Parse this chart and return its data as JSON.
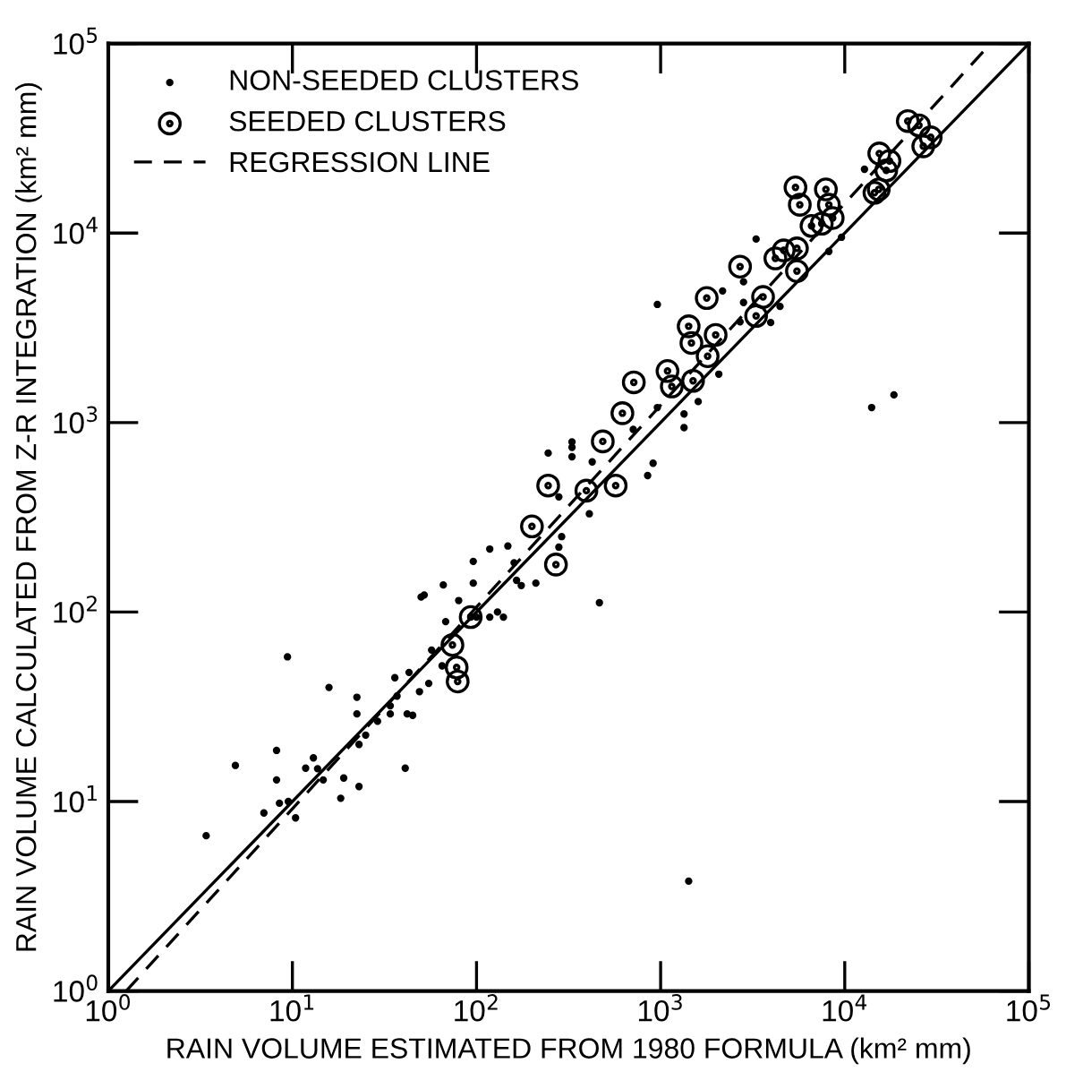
{
  "chart_data": {
    "type": "scatter",
    "xlabel": "RAIN VOLUME ESTIMATED FROM 1980 FORMULA (km² mm)",
    "ylabel": "RAIN VOLUME CALCULATED FROM Z-R INTEGRATION (km² mm)",
    "log": "xy",
    "xlim": [
      1,
      100000
    ],
    "ylim": [
      1,
      100000
    ],
    "xticks": [
      {
        "value": 1,
        "label": "10$^{0}$"
      },
      {
        "value": 10,
        "label": "10$^{1}$"
      },
      {
        "value": 100,
        "label": "10$^{2}$"
      },
      {
        "value": 1000,
        "label": "10$^{3}$"
      },
      {
        "value": 10000,
        "label": "10$^{4}$"
      },
      {
        "value": 100000,
        "label": "10$^{5}$"
      }
    ],
    "yticks": [
      {
        "value": 1,
        "label": "10$^{0}$"
      },
      {
        "value": 10,
        "label": "10$^{1}$"
      },
      {
        "value": 100,
        "label": "10$^{2}$"
      },
      {
        "value": 1000,
        "label": "10$^{3}$"
      },
      {
        "value": 10000,
        "label": "10$^{4}$"
      },
      {
        "value": 100000,
        "label": "10$^{5}$"
      }
    ],
    "grid": false,
    "legend": "top left",
    "series": [
      {
        "name": "NON-SEEDED CLUSTERS",
        "marker": "circle",
        "color": "#000000",
        "x": [
          3.4,
          4.9,
          9.4,
          7.0,
          8.2,
          8.2,
          8.5,
          9.5,
          10.4,
          11.8,
          13,
          13.7,
          14.7,
          15.8,
          19,
          18.3,
          23,
          22.4,
          22.4,
          23,
          25,
          29,
          34,
          34,
          36,
          37,
          42,
          41,
          45,
          43,
          49,
          50,
          52,
          55,
          57,
          66,
          68,
          65,
          80,
          96,
          96,
          100,
          118,
          118,
          130,
          140,
          148,
          160,
          165,
          245,
          330,
          330,
          330,
          280,
          425,
          410,
          710,
          910,
          850,
          960,
          1340,
          1340,
          1600,
          2070,
          960,
          2170,
          2820,
          2820,
          2700,
          3960,
          4450,
          3300,
          9600,
          12800,
          14000,
          18500,
          8200,
          465,
          1420,
          210,
          175,
          280,
          290
        ],
        "values": [
          6.6,
          15.5,
          58,
          8.7,
          18.6,
          13,
          9.8,
          10,
          8.2,
          15,
          17,
          14.9,
          13,
          40,
          13.3,
          10.4,
          12,
          35.5,
          29,
          20,
          22.4,
          26.5,
          32,
          29,
          45,
          36,
          29,
          15,
          28.5,
          48,
          38,
          120,
          123,
          42,
          63,
          139,
          89,
          52,
          115,
          185,
          142,
          94,
          215,
          94,
          100,
          94,
          223,
          182,
          147,
          690,
          790,
          740,
          660,
          405,
          620,
          330,
          920,
          610,
          525,
          1200,
          1110,
          940,
          1290,
          1800,
          4200,
          4950,
          5530,
          4300,
          3400,
          3370,
          4100,
          9300,
          9500,
          21700,
          1200,
          1400,
          8000,
          112,
          3.8,
          142,
          138,
          220,
          250
        ]
      },
      {
        "name": "SEEDED CLUSTERS",
        "marker": "circle",
        "color": "#000000",
        "x": [
          74,
          78,
          79,
          93,
          245,
          200,
          395,
          570,
          485,
          620,
          715,
          1090,
          1150,
          1500,
          1420,
          1470,
          1800,
          1990,
          1780,
          2700,
          3300,
          3600,
          4200,
          4660,
          5500,
          5500,
          5400,
          5700,
          6600,
          7900,
          8200,
          8600,
          7500,
          14500,
          15400,
          17500,
          16800,
          15300,
          22000,
          25300,
          26700,
          29300,
          270
        ],
        "values": [
          67,
          51,
          43,
          94,
          465,
          283,
          437,
          465,
          795,
          1120,
          1630,
          1870,
          1550,
          1660,
          3220,
          2630,
          2240,
          2900,
          4540,
          6650,
          3650,
          4600,
          7350,
          8100,
          8300,
          6300,
          17400,
          14100,
          10900,
          17000,
          14100,
          12000,
          11200,
          16300,
          26300,
          24000,
          21400,
          17000,
          39000,
          37000,
          28700,
          32000,
          178
        ]
      },
      {
        "name": "REGRESSION LINE",
        "type": "line",
        "line_style": "dashed",
        "color": "#000000",
        "x": [
          1.25,
          62000
        ],
        "values": [
          1,
          100000
        ]
      },
      {
        "type": "line",
        "line_style": "solid",
        "color": "#000000",
        "x": [
          1,
          100000
        ],
        "values": [
          1,
          100000
        ]
      }
    ]
  }
}
